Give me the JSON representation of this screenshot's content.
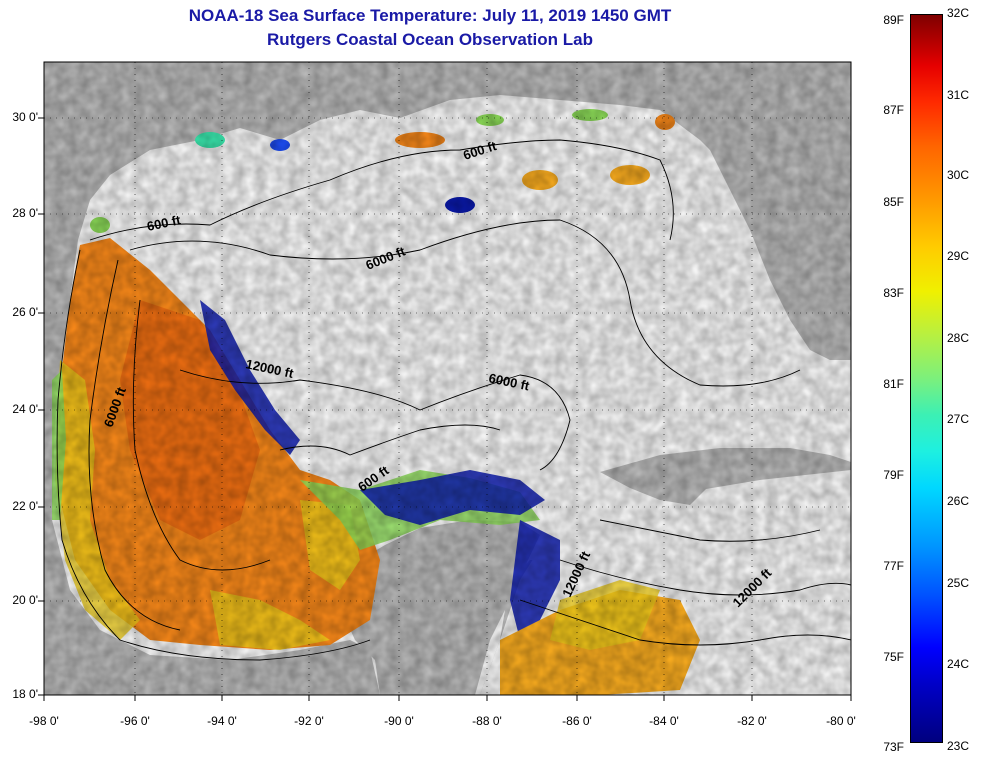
{
  "title": {
    "line1": "NOAA-18 Sea Surface Temperature:  July 11, 2019 1450 GMT",
    "line2": "Rutgers Coastal Ocean Observation Lab"
  },
  "axes": {
    "lat_labels": [
      "30 0'",
      "28 0'",
      "26 0'",
      "24 0'",
      "22 0'",
      "20 0'",
      "18 0'"
    ],
    "lon_labels": [
      "-98 0'",
      "-96 0'",
      "-94 0'",
      "-92 0'",
      "-90 0'",
      "-88 0'",
      "-86 0'",
      "-84 0'",
      "-82 0'",
      "-80 0'"
    ]
  },
  "contours": {
    "labels": [
      "600 ft",
      "600 ft",
      "6000 ft",
      "6000 ft",
      "6000 ft",
      "12000 ft",
      "600 ft",
      "12000 ft",
      "12000 ft"
    ]
  },
  "colorbar": {
    "fahrenheit": [
      "89F",
      "87F",
      "85F",
      "83F",
      "81F",
      "79F",
      "77F",
      "75F",
      "73F"
    ],
    "celsius": [
      "32C",
      "31C",
      "30C",
      "29C",
      "28C",
      "27C",
      "26C",
      "25C",
      "24C",
      "23C"
    ]
  },
  "colors": {
    "land": "#bebebe",
    "title": "#1a1aa6",
    "warm": "#ff8c1a",
    "cool": "#0a1ab4"
  }
}
